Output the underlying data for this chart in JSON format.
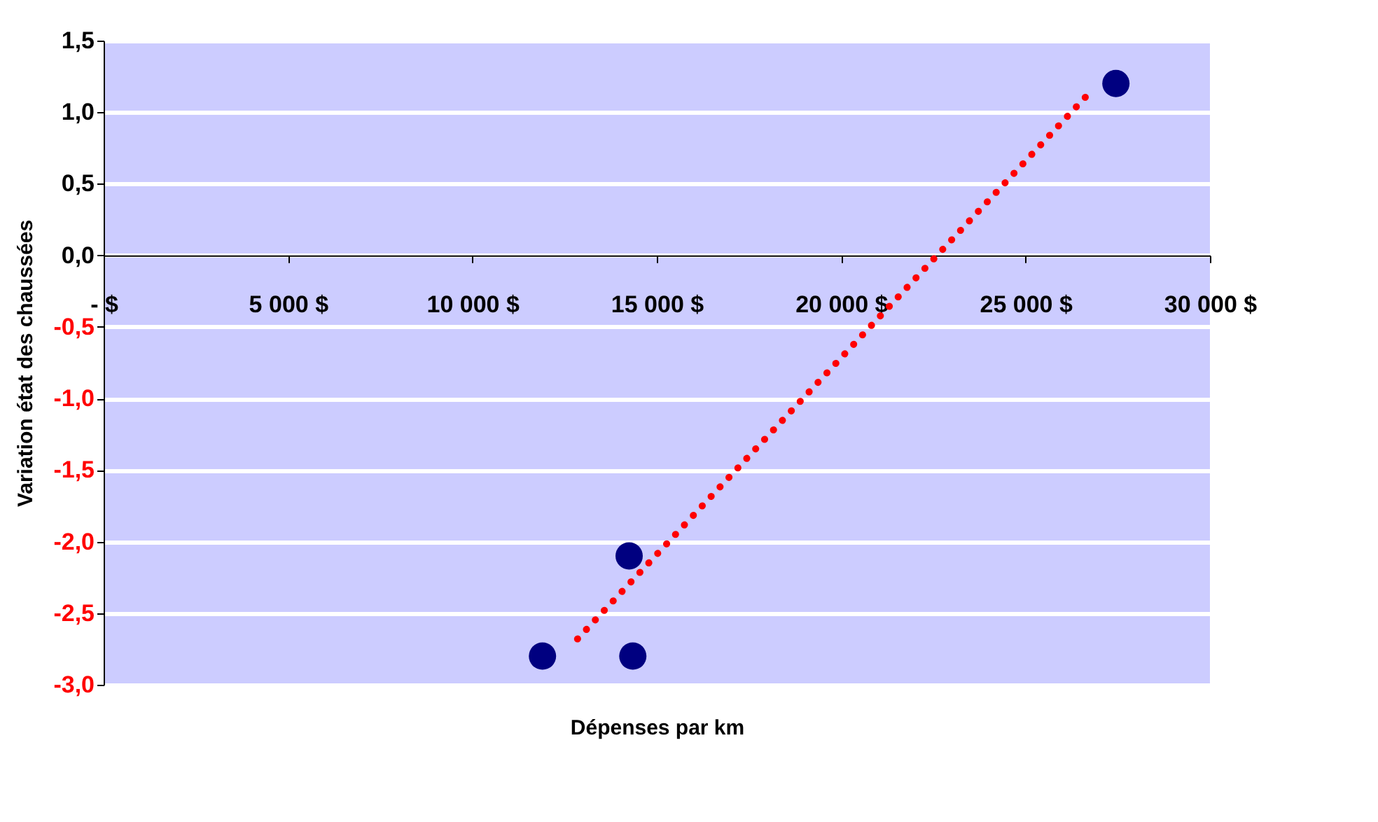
{
  "chart_data": {
    "type": "scatter",
    "xlabel": "Dépenses par km",
    "ylabel": "Variation état des chaussées",
    "xlim": [
      0,
      30000
    ],
    "ylim": [
      -3.0,
      1.5
    ],
    "xticks": [
      {
        "value": 0,
        "label": "- $"
      },
      {
        "value": 5000,
        "label": "5 000 $"
      },
      {
        "value": 10000,
        "label": "10 000 $"
      },
      {
        "value": 15000,
        "label": "15 000 $"
      },
      {
        "value": 20000,
        "label": "20 000 $"
      },
      {
        "value": 25000,
        "label": "25 000 $"
      },
      {
        "value": 30000,
        "label": "30 000 $"
      }
    ],
    "yticks": [
      {
        "value": 1.5,
        "label": "1,5"
      },
      {
        "value": 1.0,
        "label": "1,0"
      },
      {
        "value": 0.5,
        "label": "0,5"
      },
      {
        "value": 0.0,
        "label": "0,0"
      },
      {
        "value": -0.5,
        "label": "-0,5"
      },
      {
        "value": -1.0,
        "label": "-1,0"
      },
      {
        "value": -1.5,
        "label": "-1,5"
      },
      {
        "value": -2.0,
        "label": "-2,0"
      },
      {
        "value": -2.5,
        "label": "-2,5"
      },
      {
        "value": -3.0,
        "label": "-3,0"
      }
    ],
    "grid": "y",
    "series": [
      {
        "color": "#000080",
        "marker": "circle",
        "x": [
          11900,
          14250,
          14350,
          27450
        ],
        "values": [
          -2.8,
          -2.1,
          -2.8,
          1.2
        ]
      },
      {
        "type": "line",
        "color": "#ff0000",
        "marker": "none",
        "line_style": "dotted",
        "x": [
          12850,
          26750
        ],
        "values": [
          -2.68,
          1.14
        ]
      }
    ]
  }
}
